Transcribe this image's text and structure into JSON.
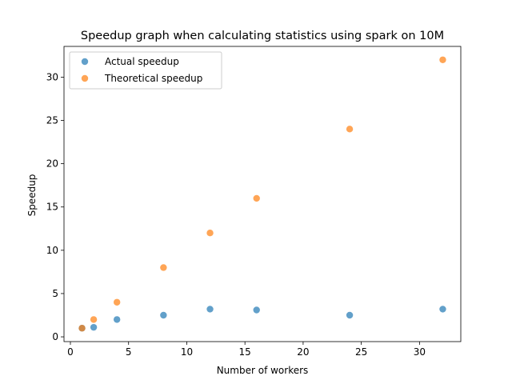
{
  "chart_data": {
    "type": "scatter",
    "title": "Speedup graph when calculating statistics using spark on 10M",
    "xlabel": "Number of workers",
    "ylabel": "Speedup",
    "xlim": [
      -0.55,
      33.55
    ],
    "ylim": [
      -0.55,
      33.55
    ],
    "xticks": [
      0,
      5,
      10,
      15,
      20,
      25,
      30
    ],
    "yticks": [
      0,
      5,
      10,
      15,
      20,
      25,
      30
    ],
    "grid": false,
    "legend_position": "top-left",
    "series": [
      {
        "name": "Actual speedup",
        "color": "#1f77b4",
        "x": [
          1,
          2,
          4,
          8,
          12,
          16,
          24,
          32
        ],
        "y": [
          1.0,
          1.1,
          2.0,
          2.5,
          3.2,
          3.1,
          2.5,
          3.2
        ]
      },
      {
        "name": "Theoretical speedup",
        "color": "#ff7f0e",
        "x": [
          1,
          2,
          4,
          8,
          12,
          16,
          24,
          32
        ],
        "y": [
          1,
          2,
          4,
          8,
          12,
          16,
          24,
          32
        ]
      }
    ]
  }
}
